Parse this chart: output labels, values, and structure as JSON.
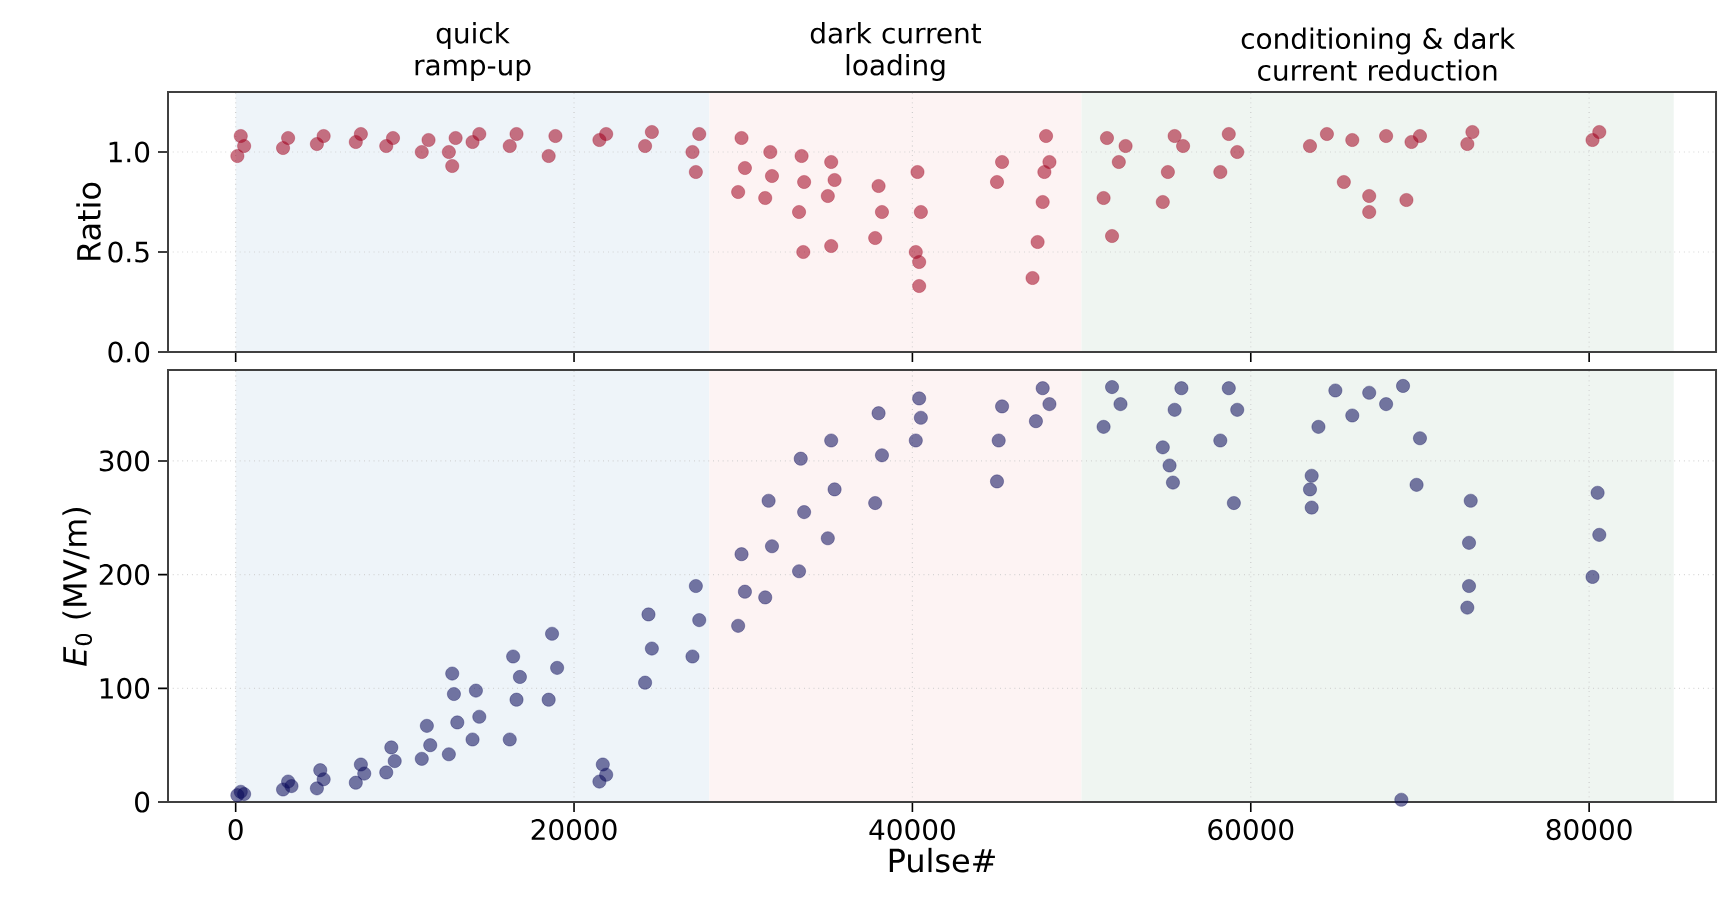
{
  "chart_data": [
    {
      "type": "scatter",
      "ylabel": "Ratio",
      "xlim": [
        -4000,
        87500
      ],
      "xticks": [
        0,
        20000,
        40000,
        60000,
        80000
      ],
      "ylim": [
        0,
        1.3
      ],
      "yticks": [
        {
          "value": 0,
          "label": "0.0"
        },
        {
          "value": 0.5,
          "label": "0.5"
        },
        {
          "value": 1,
          "label": "1.0"
        }
      ],
      "tick_labels": "y",
      "grid": true,
      "marker": "circle",
      "bands": [
        {
          "axis": "x",
          "from": 0,
          "to": 28000,
          "label": "quick ramp-up",
          "color": "#eef4f9"
        },
        {
          "axis": "x",
          "from": 28000,
          "to": 50000,
          "label": "dark current loading",
          "color": "#fdf3f3"
        },
        {
          "axis": "x",
          "from": 50000,
          "to": 85000,
          "label": "conditioning & dark current reduction",
          "color": "#eff5f1"
        }
      ],
      "series": [
        {
          "color": "#a0001e",
          "x": [
            100,
            300,
            500,
            2800,
            3100,
            4800,
            5200,
            7100,
            7400,
            8900,
            9300,
            11000,
            11400,
            12600,
            12800,
            13000,
            14000,
            14400,
            16200,
            16600,
            18500,
            18900,
            21500,
            21900,
            24200,
            24600,
            27000,
            27200,
            27400,
            29700,
            29900,
            30100,
            31300,
            31600,
            31700,
            33300,
            33450,
            33550,
            33600,
            35000,
            35200,
            35200,
            35400,
            37800,
            38000,
            38200,
            40200,
            40300,
            40400,
            40400,
            40500,
            45000,
            45300,
            47100,
            47400,
            47700,
            47900,
            48100,
            47800,
            51300,
            51800,
            51500,
            52200,
            52600,
            54800,
            55100,
            55500,
            56000,
            58200,
            58700,
            59200,
            63500,
            64500,
            65500,
            66000,
            67000,
            67000,
            68000,
            69200,
            69500,
            70000,
            72800,
            73100,
            80200,
            80600
          ],
          "values": [
            0.98,
            1.08,
            1.03,
            1.02,
            1.07,
            1.04,
            1.08,
            1.05,
            1.09,
            1.03,
            1.07,
            1.0,
            1.06,
            1.0,
            0.93,
            1.07,
            1.05,
            1.09,
            1.03,
            1.09,
            0.98,
            1.08,
            1.06,
            1.09,
            1.03,
            1.1,
            1.0,
            0.9,
            1.09,
            0.8,
            1.07,
            0.92,
            0.77,
            1.0,
            0.88,
            0.7,
            0.98,
            0.5,
            0.85,
            0.78,
            0.95,
            0.53,
            0.86,
            0.57,
            0.83,
            0.7,
            0.5,
            0.9,
            0.33,
            0.45,
            0.7,
            0.85,
            0.95,
            0.37,
            0.55,
            0.75,
            1.08,
            0.95,
            0.9,
            0.77,
            0.58,
            1.07,
            0.95,
            1.03,
            0.75,
            0.9,
            1.08,
            1.03,
            0.9,
            1.09,
            1.0,
            1.03,
            1.09,
            0.85,
            1.06,
            0.7,
            0.78,
            1.08,
            0.76,
            1.05,
            1.08,
            1.04,
            1.1,
            1.06,
            1.1
          ]
        }
      ]
    },
    {
      "type": "scatter",
      "xlabel": "Pulse#",
      "ylabel": "*E*$_{0}$ (MV/m)",
      "xlim": [
        -4000,
        87500
      ],
      "xticks": [
        0,
        20000,
        40000,
        60000,
        80000
      ],
      "ylim": [
        0,
        380
      ],
      "yticks": [
        0,
        100,
        200,
        300
      ],
      "grid": true,
      "marker": "circle",
      "bands": [
        {
          "axis": "x",
          "from": 0,
          "to": 28000,
          "color": "#eef4f9"
        },
        {
          "axis": "x",
          "from": 28000,
          "to": 50000,
          "color": "#fdf3f3"
        },
        {
          "axis": "x",
          "from": 50000,
          "to": 85000,
          "color": "#eff5f1"
        }
      ],
      "series": [
        {
          "color": "#0a0a5a",
          "x": [
            100,
            300,
            500,
            2800,
            3100,
            3300,
            4800,
            5000,
            5200,
            7100,
            7400,
            7600,
            8900,
            9200,
            9400,
            11000,
            11300,
            11500,
            12600,
            12800,
            12900,
            13100,
            14000,
            14200,
            14400,
            16200,
            16400,
            16600,
            16800,
            18500,
            18700,
            19000,
            21500,
            21700,
            21900,
            24200,
            24400,
            24600,
            27000,
            27200,
            27400,
            29700,
            29900,
            30100,
            31300,
            31500,
            31700,
            33300,
            33400,
            33600,
            35000,
            35200,
            35400,
            37800,
            38000,
            38200,
            40200,
            40400,
            40500,
            45000,
            45100,
            45300,
            47300,
            47700,
            48100,
            51300,
            51800,
            52300,
            54800,
            55200,
            55400,
            55500,
            55900,
            58200,
            58700,
            59000,
            59200,
            63600,
            63500,
            63600,
            64000,
            65000,
            66000,
            67000,
            68000,
            68900,
            69000,
            69800,
            70000,
            72800,
            72900,
            73000,
            72900,
            80200,
            80500,
            80600
          ],
          "values": [
            6,
            9,
            7,
            11,
            18,
            14,
            12,
            28,
            20,
            17,
            33,
            25,
            26,
            48,
            36,
            38,
            67,
            50,
            42,
            113,
            95,
            70,
            55,
            98,
            75,
            55,
            128,
            90,
            110,
            90,
            148,
            118,
            18,
            33,
            24,
            105,
            165,
            135,
            128,
            190,
            160,
            155,
            218,
            185,
            180,
            265,
            225,
            203,
            302,
            255,
            232,
            318,
            275,
            263,
            342,
            305,
            318,
            355,
            338,
            282,
            318,
            348,
            335,
            364,
            350,
            330,
            365,
            350,
            312,
            296,
            281,
            345,
            364,
            318,
            364,
            263,
            345,
            287,
            275,
            259,
            330,
            362,
            340,
            360,
            350,
            2,
            366,
            279,
            320,
            171,
            190,
            265,
            228,
            198,
            272,
            235
          ]
        }
      ]
    }
  ]
}
